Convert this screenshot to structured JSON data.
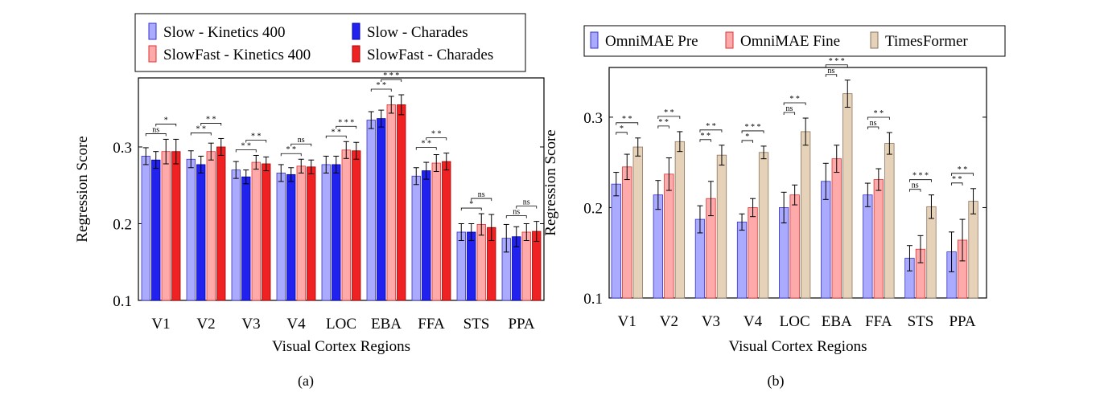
{
  "chart_data": [
    {
      "type": "bar",
      "caption": "(a)",
      "xlabel": "Visual Cortex Regions",
      "ylabel": "Regression Score",
      "ylim": [
        0.1,
        0.39
      ],
      "yticks": [
        "0.1",
        "0.2",
        "0.3"
      ],
      "ytick_values": [
        0.1,
        0.2,
        0.3
      ],
      "categories": [
        "V1",
        "V2",
        "V3",
        "V4",
        "LOC",
        "EBA",
        "FFA",
        "STS",
        "PPA"
      ],
      "legend_placement": "top",
      "series": [
        {
          "name": "Slow - Kinetics 400",
          "color": "#aaaaff",
          "stroke": "#3333cc",
          "values": [
            0.288,
            0.284,
            0.27,
            0.266,
            0.277,
            0.335,
            0.262,
            0.189,
            0.181
          ],
          "errors": [
            0.011,
            0.011,
            0.011,
            0.011,
            0.011,
            0.011,
            0.011,
            0.011,
            0.018
          ]
        },
        {
          "name": "Slow - Charades",
          "color": "#2222ee",
          "stroke": "#0000aa",
          "values": [
            0.283,
            0.277,
            0.261,
            0.264,
            0.277,
            0.337,
            0.269,
            0.189,
            0.183
          ],
          "errors": [
            0.011,
            0.011,
            0.009,
            0.009,
            0.011,
            0.011,
            0.011,
            0.011,
            0.013
          ]
        },
        {
          "name": "SlowFast - Kinetics 400",
          "color": "#ffaaaa",
          "stroke": "#dd3333",
          "values": [
            0.294,
            0.294,
            0.28,
            0.275,
            0.296,
            0.355,
            0.279,
            0.199,
            0.189
          ],
          "errors": [
            0.016,
            0.011,
            0.009,
            0.009,
            0.011,
            0.011,
            0.011,
            0.014,
            0.011
          ]
        },
        {
          "name": "SlowFast - Charades",
          "color": "#ee2222",
          "stroke": "#aa0000",
          "values": [
            0.294,
            0.3,
            0.278,
            0.274,
            0.295,
            0.355,
            0.281,
            0.195,
            0.19
          ],
          "errors": [
            0.016,
            0.011,
            0.009,
            0.009,
            0.011,
            0.013,
            0.011,
            0.017,
            0.013
          ]
        }
      ],
      "significance": [
        [
          {
            "label": "ns"
          },
          {
            "label": "*"
          }
        ],
        [
          {
            "label": "* *"
          },
          {
            "label": "* *"
          }
        ],
        [
          {
            "label": "* *"
          },
          {
            "label": "* *"
          }
        ],
        [
          {
            "label": "* *"
          },
          {
            "label": "ns"
          }
        ],
        [
          {
            "label": "* *"
          },
          {
            "label": "* * *"
          }
        ],
        [
          {
            "label": "* *"
          },
          {
            "label": "* * *"
          }
        ],
        [
          {
            "label": "* *"
          },
          {
            "label": "* *"
          }
        ],
        [
          {
            "label": "*"
          },
          {
            "label": "ns"
          }
        ],
        [
          {
            "label": "ns"
          },
          {
            "label": "ns"
          }
        ]
      ]
    },
    {
      "type": "bar",
      "caption": "(b)",
      "xlabel": "Visual Cortex Regions",
      "ylabel": "Regression Score",
      "ylim": [
        0.1,
        0.355
      ],
      "yticks": [
        "0.1",
        "0.2",
        "0.3"
      ],
      "ytick_values": [
        0.1,
        0.2,
        0.3
      ],
      "categories": [
        "V1",
        "V2",
        "V3",
        "V4",
        "LOC",
        "EBA",
        "FFA",
        "STS",
        "PPA"
      ],
      "legend_placement": "top",
      "series": [
        {
          "name": "OmniMAE Pre",
          "color": "#aaaaff",
          "stroke": "#3333cc",
          "values": [
            0.226,
            0.214,
            0.187,
            0.184,
            0.2,
            0.229,
            0.214,
            0.144,
            0.151
          ],
          "errors": [
            0.013,
            0.016,
            0.015,
            0.009,
            0.017,
            0.02,
            0.013,
            0.014,
            0.022
          ]
        },
        {
          "name": "OmniMAE Fine",
          "color": "#ffaaaa",
          "stroke": "#dd3333",
          "values": [
            0.245,
            0.237,
            0.21,
            0.2,
            0.214,
            0.254,
            0.231,
            0.154,
            0.164
          ],
          "errors": [
            0.014,
            0.018,
            0.019,
            0.01,
            0.011,
            0.015,
            0.012,
            0.015,
            0.023
          ]
        },
        {
          "name": "TimesFormer",
          "color": "#e6d2b8",
          "stroke": "#8a7560",
          "values": [
            0.267,
            0.273,
            0.258,
            0.261,
            0.284,
            0.326,
            0.271,
            0.201,
            0.207
          ],
          "errors": [
            0.01,
            0.011,
            0.011,
            0.007,
            0.015,
            0.015,
            0.012,
            0.013,
            0.014
          ]
        }
      ],
      "significance": [
        [
          {
            "label": "*"
          },
          {
            "label": "* *"
          }
        ],
        [
          {
            "label": "* *"
          },
          {
            "label": "* *"
          }
        ],
        [
          {
            "label": "* *"
          },
          {
            "label": "* *"
          }
        ],
        [
          {
            "label": "*"
          },
          {
            "label": "* * *"
          }
        ],
        [
          {
            "label": "ns"
          },
          {
            "label": "* *"
          }
        ],
        [
          {
            "label": "ns"
          },
          {
            "label": "* * *"
          }
        ],
        [
          {
            "label": "ns"
          },
          {
            "label": "* *"
          }
        ],
        [
          {
            "label": "ns"
          },
          {
            "label": "* * *"
          }
        ],
        [
          {
            "label": "* *"
          },
          {
            "label": "* *"
          }
        ]
      ]
    }
  ]
}
